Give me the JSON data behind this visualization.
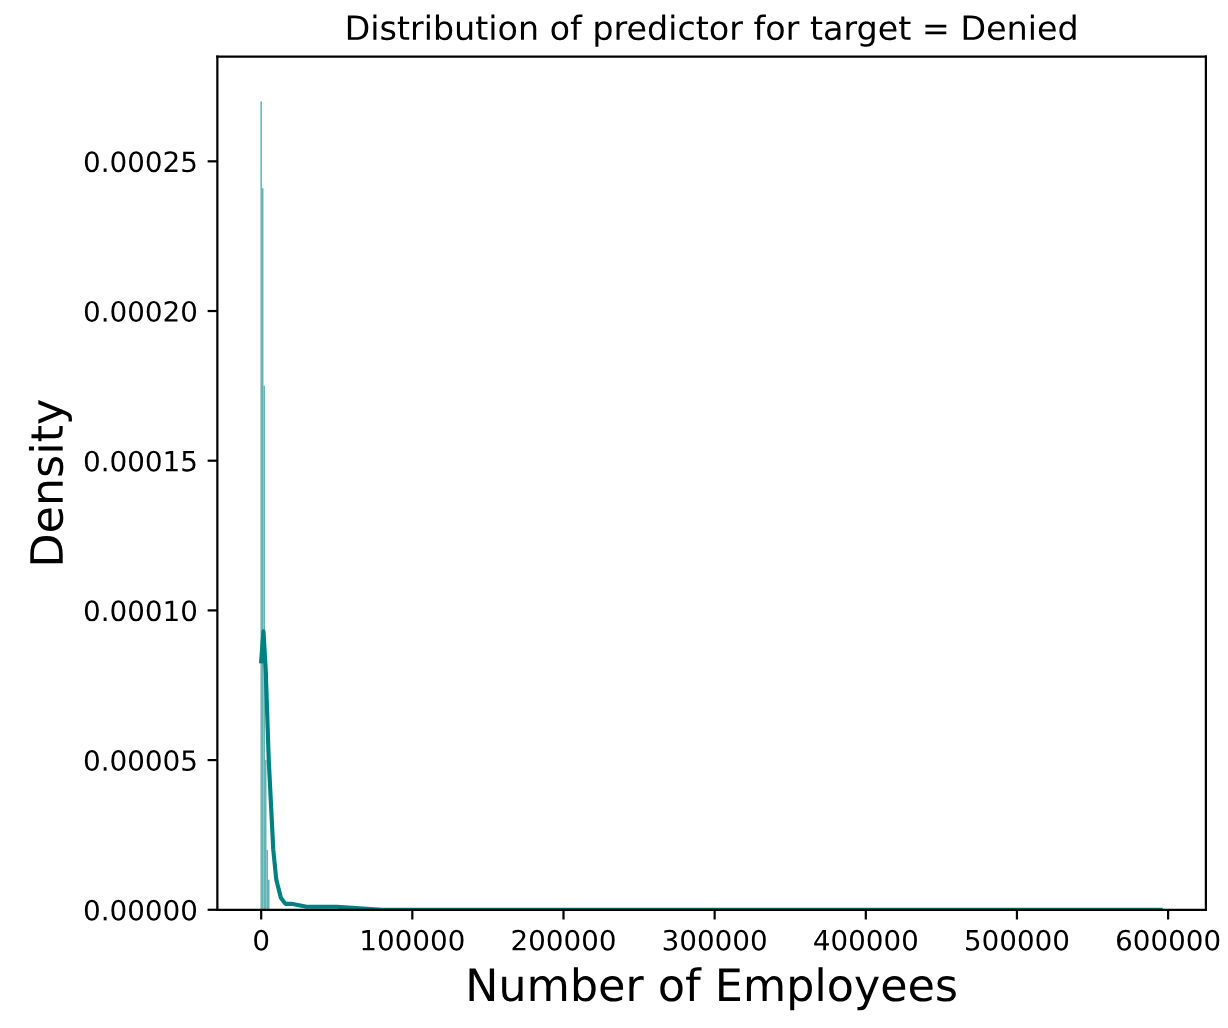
{
  "chart_data": {
    "type": "histogram",
    "title": "Distribution of predictor for target = Denied",
    "xlabel": "Number of Employees",
    "ylabel": "Density",
    "xlim": [
      -29000,
      625000
    ],
    "xticks": [
      0,
      100000,
      200000,
      300000,
      400000,
      500000,
      600000
    ],
    "ylim": [
      0,
      0.000285
    ],
    "yticks": [
      {
        "value": 0,
        "label": "0.00000"
      },
      {
        "value": 5e-05,
        "label": "0.00005"
      },
      {
        "value": 0.0001,
        "label": "0.00010"
      },
      {
        "value": 0.00015,
        "label": "0.00015"
      },
      {
        "value": 0.0002,
        "label": "0.00020"
      },
      {
        "value": 0.00025,
        "label": "0.00025"
      }
    ],
    "grid": false,
    "series": [
      {
        "color": "#66b2b2",
        "bins": [
          -500,
          500,
          1500,
          2500,
          3500,
          4500,
          5500
        ],
        "values": [
          0.00027,
          0.000241,
          0.000175,
          5e-05,
          2e-05,
          1e-05
        ]
      },
      {
        "type": "line",
        "color": "#008080",
        "x": [
          0,
          1500,
          3000,
          5000,
          8000,
          10000,
          13000,
          16000,
          20000,
          30000,
          50000,
          80000,
          120000,
          200000,
          300000,
          400000,
          500000,
          595000
        ],
        "values": [
          8.3e-05,
          9.3e-05,
          8e-05,
          5e-05,
          2e-05,
          1e-05,
          4e-06,
          2e-06,
          2e-06,
          1e-06,
          1e-06,
          0,
          0,
          0,
          0,
          0,
          0,
          0
        ]
      }
    ]
  }
}
